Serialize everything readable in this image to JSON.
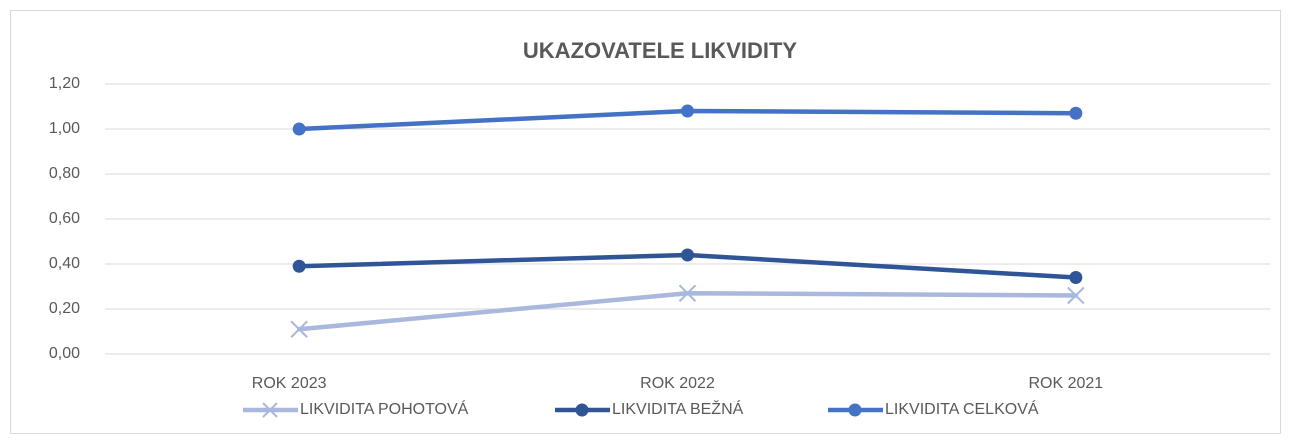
{
  "chart_data": {
    "type": "line",
    "title": "UKAZOVATELE LIKVIDITY",
    "categories": [
      "ROK 2023",
      "ROK 2022",
      "ROK 2021"
    ],
    "series": [
      {
        "name": "LIKVIDITA POHOTOVÁ",
        "color": "#a9b8dc",
        "marker": "x",
        "values": [
          0.11,
          0.27,
          0.26
        ]
      },
      {
        "name": "LIKVIDITA BEŽNÁ",
        "color": "#2f5597",
        "marker": "circle",
        "values": [
          0.39,
          0.44,
          0.34
        ]
      },
      {
        "name": "LIKVIDITA CELKOVÁ",
        "color": "#4472c4",
        "marker": "circle",
        "values": [
          1.0,
          1.08,
          1.07
        ]
      }
    ],
    "ylim": [
      0,
      1.2
    ],
    "yticks": [
      {
        "value": 0,
        "label": "0,00"
      },
      {
        "value": 0.2,
        "label": "0,20"
      },
      {
        "value": 0.4,
        "label": "0,40"
      },
      {
        "value": 0.6,
        "label": "0,60"
      },
      {
        "value": 0.8,
        "label": "0,80"
      },
      {
        "value": 1,
        "label": "1,00"
      },
      {
        "value": 1.2,
        "label": "1,20"
      }
    ],
    "grid": true,
    "legend": "bottom"
  }
}
